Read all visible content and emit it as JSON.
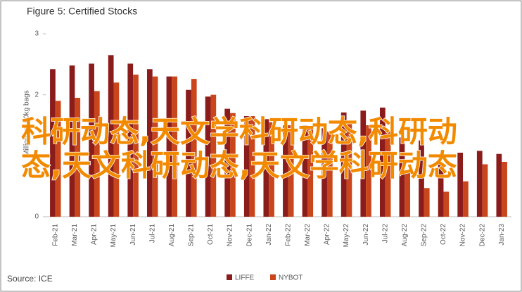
{
  "chart_data": {
    "type": "bar",
    "title": "Figure 5: Certified Stocks",
    "y_label": "Millions of 60kg bags",
    "source": "Source: ICE",
    "categories": [
      "Feb-21",
      "Mar-21",
      "Apr-21",
      "May-21",
      "Jun-21",
      "Jul-21",
      "Aug-21",
      "Sep-21",
      "Oct-21",
      "Nov-21",
      "Dec-21",
      "Jan-22",
      "Feb-22",
      "Mar-22",
      "Apr-22",
      "May-22",
      "Jun-22",
      "Jul-22",
      "Aug-22",
      "Sep-22",
      "Oct-22",
      "Nov-22",
      "Dec-22",
      "Jan-23"
    ],
    "series": [
      {
        "name": "LIFFE",
        "color": "#8b1c1c",
        "values": [
          2.42,
          2.48,
          2.51,
          2.65,
          2.51,
          2.42,
          2.3,
          2.08,
          1.97,
          1.77,
          1.65,
          1.6,
          1.5,
          1.5,
          1.45,
          1.71,
          1.74,
          1.79,
          1.3,
          1.25,
          0.88,
          1.05,
          1.08,
          1.03
        ]
      },
      {
        "name": "NYBOT",
        "color": "#c9461c",
        "values": [
          1.9,
          1.95,
          2.06,
          2.2,
          2.33,
          2.3,
          2.3,
          2.26,
          2.0,
          1.7,
          1.65,
          1.55,
          1.5,
          1.45,
          1.4,
          1.57,
          1.5,
          1.4,
          0.72,
          0.47,
          0.41,
          0.58,
          0.86,
          0.9
        ]
      }
    ],
    "ylim": [
      0,
      3.3
    ],
    "yticks": [
      0,
      1,
      2,
      3
    ],
    "legend": "bottom",
    "watermark": [
      "科研动态,天文学科研动态,科研动",
      "态,天文科研动态,天文学科研动态"
    ]
  }
}
